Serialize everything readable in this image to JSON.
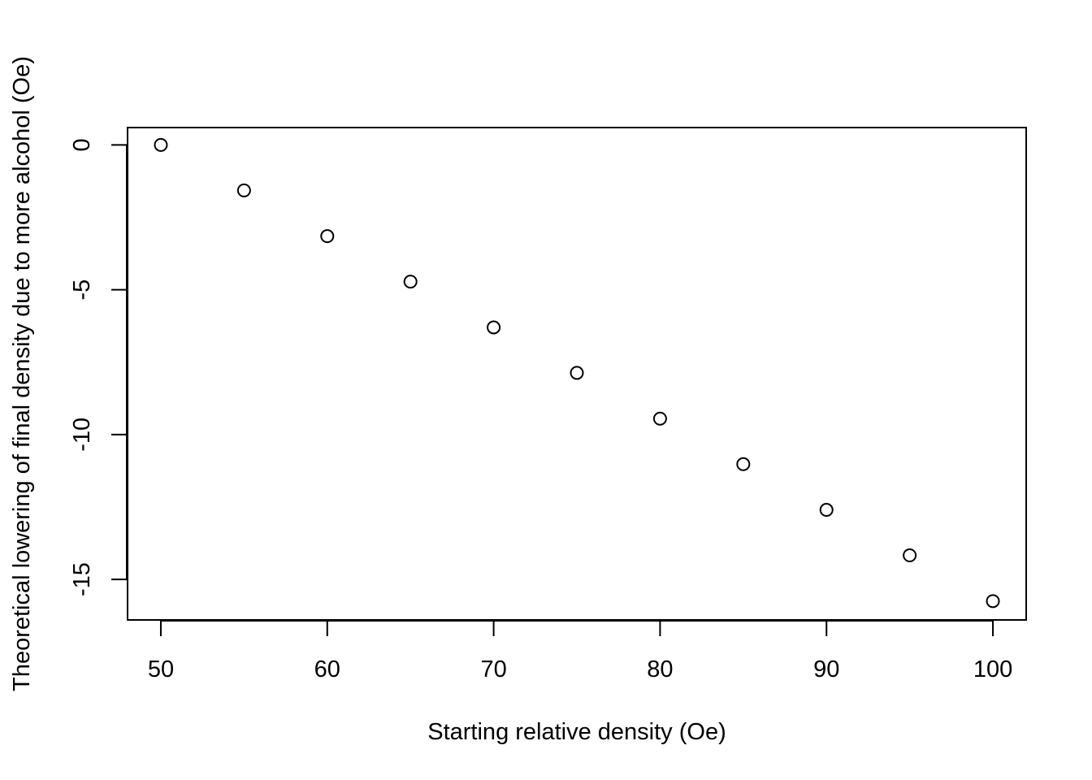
{
  "chart_data": {
    "type": "scatter",
    "title": "",
    "xlabel": "Starting relative density (Oe)",
    "ylabel": "Theoretical lowering of final density due to more alcohol (Oe)",
    "xlim": [
      48,
      102
    ],
    "ylim": [
      -16.4,
      0.6
    ],
    "x_ticks": [
      50,
      60,
      70,
      80,
      90,
      100
    ],
    "y_ticks": [
      0,
      -5,
      -10,
      -15
    ],
    "x_tick_labels": [
      "50",
      "60",
      "70",
      "80",
      "90",
      "100"
    ],
    "y_tick_labels": [
      "0",
      "-5",
      "-10",
      "-15"
    ],
    "grid": false,
    "legend": "none",
    "marker": "open-circle",
    "colors": {
      "marker": "#000000",
      "axis": "#000000",
      "background": "#ffffff"
    },
    "x": [
      50,
      55,
      60,
      65,
      70,
      75,
      80,
      85,
      90,
      95,
      100
    ],
    "y": [
      0.0,
      -1.57,
      -3.15,
      -4.72,
      -6.3,
      -7.87,
      -9.45,
      -11.02,
      -12.6,
      -14.17,
      -15.75
    ]
  }
}
